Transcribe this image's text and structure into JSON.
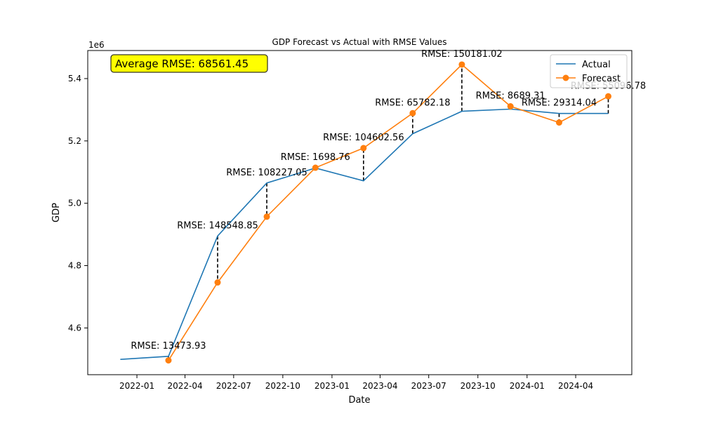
{
  "chart_data": {
    "type": "line",
    "title": "GDP Forecast vs Actual with RMSE Values",
    "xlabel": "Date",
    "ylabel": "GDP",
    "y_offset_label": "1e6",
    "ylim": [
      4.45,
      5.49
    ],
    "xlim": [
      "2021-10-01",
      "2024-07-15"
    ],
    "x_ticks": [
      "2022-01",
      "2022-04",
      "2022-07",
      "2022-10",
      "2023-01",
      "2023-04",
      "2023-07",
      "2023-10",
      "2024-01",
      "2024-04"
    ],
    "y_ticks": [
      4.6,
      4.8,
      5.0,
      5.2,
      5.4
    ],
    "y_tick_labels": [
      "4.6",
      "4.8",
      "5.0",
      "5.2",
      "5.4"
    ],
    "series": [
      {
        "name": "Actual",
        "color": "#1f77b4",
        "marker": "none",
        "x": [
          "2021-12-01",
          "2022-03-01",
          "2022-06-01",
          "2022-09-01",
          "2022-12-01",
          "2023-03-01",
          "2023-06-01",
          "2023-09-01",
          "2023-12-01",
          "2024-03-01",
          "2024-06-01"
        ],
        "values": [
          4.499,
          4.509,
          4.895,
          5.065,
          5.113,
          5.072,
          5.223,
          5.295,
          5.302,
          5.288,
          5.288
        ]
      },
      {
        "name": "Forecast",
        "color": "#ff7f0e",
        "marker": "circle",
        "x": [
          "2022-03-01",
          "2022-06-01",
          "2022-09-01",
          "2022-12-01",
          "2023-03-01",
          "2023-06-01",
          "2023-09-01",
          "2023-12-01",
          "2024-03-01",
          "2024-06-01"
        ],
        "values": [
          4.496,
          4.746,
          4.957,
          5.114,
          5.177,
          5.289,
          5.445,
          5.311,
          5.259,
          5.343
        ]
      }
    ],
    "rmse_annotations": [
      {
        "x": "2022-03-01",
        "label": "RMSE: 13473.93"
      },
      {
        "x": "2022-06-01",
        "label": "RMSE: 148548.85"
      },
      {
        "x": "2022-09-01",
        "label": "RMSE: 108227.05"
      },
      {
        "x": "2022-12-01",
        "label": "RMSE: 1698.76"
      },
      {
        "x": "2023-03-01",
        "label": "RMSE: 104602.56"
      },
      {
        "x": "2023-06-01",
        "label": "RMSE: 65782.18"
      },
      {
        "x": "2023-09-01",
        "label": "RMSE: 150181.02"
      },
      {
        "x": "2023-12-01",
        "label": "RMSE: 8689.31"
      },
      {
        "x": "2024-03-01",
        "label": "RMSE: 29314.04"
      },
      {
        "x": "2024-06-01",
        "label": "RMSE: 55096.78"
      }
    ],
    "summary_box": {
      "label": "Average RMSE: 68561.45",
      "background": "#ffff00"
    },
    "legend": {
      "placement": "top-right",
      "entries": [
        "Actual",
        "Forecast"
      ]
    }
  }
}
